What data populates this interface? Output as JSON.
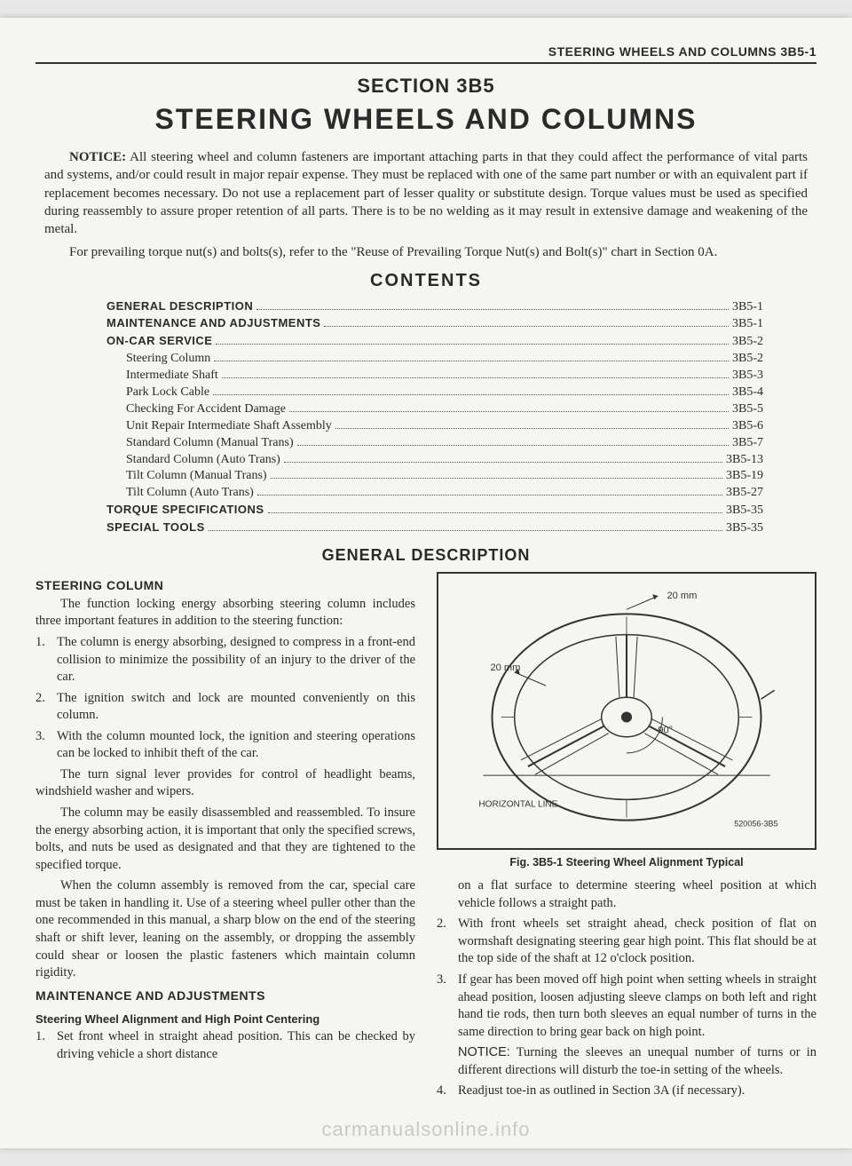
{
  "header": "STEERING WHEELS AND COLUMNS 3B5-1",
  "section_label": "SECTION 3B5",
  "main_title": "STEERING WHEELS AND COLUMNS",
  "notice": {
    "label": "NOTICE:",
    "p1": "All steering wheel and column fasteners are important attaching parts in that they could affect the performance of vital parts and systems, and/or could result in major repair expense. They must be replaced with one of the same part number or with an equivalent part if replacement becomes necessary. Do not use a replacement part of lesser quality or substitute design. Torque values must be used as specified during reassembly to assure proper retention of all parts. There is to be no welding as it may result in extensive damage and weakening of the metal.",
    "p2": "For prevailing torque nut(s) and bolts(s), refer to the \"Reuse of Prevailing Torque Nut(s) and Bolt(s)\" chart in Section 0A."
  },
  "contents_title": "CONTENTS",
  "toc": [
    {
      "label": "GENERAL DESCRIPTION",
      "page": "3B5-1",
      "bold": true,
      "indent": false
    },
    {
      "label": "MAINTENANCE AND ADJUSTMENTS",
      "page": "3B5-1",
      "bold": true,
      "indent": false
    },
    {
      "label": "ON-CAR SERVICE",
      "page": "3B5-2",
      "bold": true,
      "indent": false
    },
    {
      "label": "Steering Column",
      "page": "3B5-2",
      "bold": false,
      "indent": true
    },
    {
      "label": "Intermediate Shaft",
      "page": "3B5-3",
      "bold": false,
      "indent": true
    },
    {
      "label": "Park Lock Cable",
      "page": "3B5-4",
      "bold": false,
      "indent": true
    },
    {
      "label": "Checking For Accident Damage",
      "page": "3B5-5",
      "bold": false,
      "indent": true
    },
    {
      "label": "Unit Repair Intermediate Shaft Assembly",
      "page": "3B5-6",
      "bold": false,
      "indent": true
    },
    {
      "label": "Standard Column (Manual Trans)",
      "page": "3B5-7",
      "bold": false,
      "indent": true
    },
    {
      "label": "Standard Column (Auto Trans)",
      "page": "3B5-13",
      "bold": false,
      "indent": true
    },
    {
      "label": "Tilt Column (Manual Trans)",
      "page": "3B5-19",
      "bold": false,
      "indent": true
    },
    {
      "label": "Tilt Column (Auto Trans)",
      "page": "3B5-27",
      "bold": false,
      "indent": true
    },
    {
      "label": "TORQUE SPECIFICATIONS",
      "page": "3B5-35",
      "bold": true,
      "indent": false
    },
    {
      "label": "SPECIAL TOOLS",
      "page": "3B5-35",
      "bold": true,
      "indent": false
    }
  ],
  "gen_desc_title": "GENERAL DESCRIPTION",
  "left_col": {
    "h1": "STEERING COLUMN",
    "p1": "The function locking energy absorbing steering column includes three important features in addition to the steering function:",
    "items": [
      {
        "num": "1.",
        "text": "The column is energy absorbing, designed to compress in a front-end collision to minimize the possibility of an injury to the driver of the car."
      },
      {
        "num": "2.",
        "text": "The ignition switch and lock are mounted conveniently on this column."
      },
      {
        "num": "3.",
        "text": "With the column mounted lock, the ignition and steering operations can be locked to inhibit theft of the car."
      }
    ],
    "p2": "The turn signal lever provides for control of headlight beams, windshield washer and wipers.",
    "p3": "The column may be easily disassembled and reassembled. To insure the energy absorbing action, it is important that only the specified screws, bolts, and nuts be used as designated and that they are tightened to the specified torque.",
    "p4": "When the column assembly is removed from the car, special care must be taken in handling it. Use of a steering wheel puller other than the one recommended in this manual, a sharp blow on the end of the steering shaft or shift lever, leaning on the assembly, or dropping the assembly could shear or loosen the plastic fasteners which maintain column rigidity.",
    "h2": "MAINTENANCE AND ADJUSTMENTS",
    "h3": "Steering Wheel Alignment and High Point Centering",
    "items2": [
      {
        "num": "1.",
        "text": "Set front wheel in straight ahead position. This can be checked by driving vehicle a short distance"
      }
    ]
  },
  "right_col": {
    "fig": {
      "label_20mm_top": "20 mm",
      "label_20mm_left": "20 mm",
      "label_90": "90°",
      "label_horiz": "HORIZONTAL LINE",
      "code": "520056-3B5"
    },
    "fig_caption": "Fig. 3B5-1 Steering Wheel Alignment Typical",
    "p1": "on a flat surface to determine steering wheel position at which vehicle follows a straight path.",
    "items": [
      {
        "num": "2.",
        "text": "With front wheels set straight ahead, check position of flat on wormshaft designating steering gear high point. This flat should be at the top side of the shaft at 12 o'clock position."
      },
      {
        "num": "3.",
        "text": "If gear has been moved off high point when setting wheels in straight ahead position, loosen adjusting sleeve clamps on both left and right hand tie rods, then turn both sleeves an equal number of turns in the same direction to bring gear back on high point."
      }
    ],
    "notice_label": "NOTICE:",
    "notice_text": "Turning the sleeves an unequal number of turns or in different directions will disturb the toe-in setting of the wheels.",
    "items2": [
      {
        "num": "4.",
        "text": "Readjust toe-in as outlined in Section 3A (if necessary)."
      }
    ]
  },
  "watermark": "carmanualsonline.info"
}
